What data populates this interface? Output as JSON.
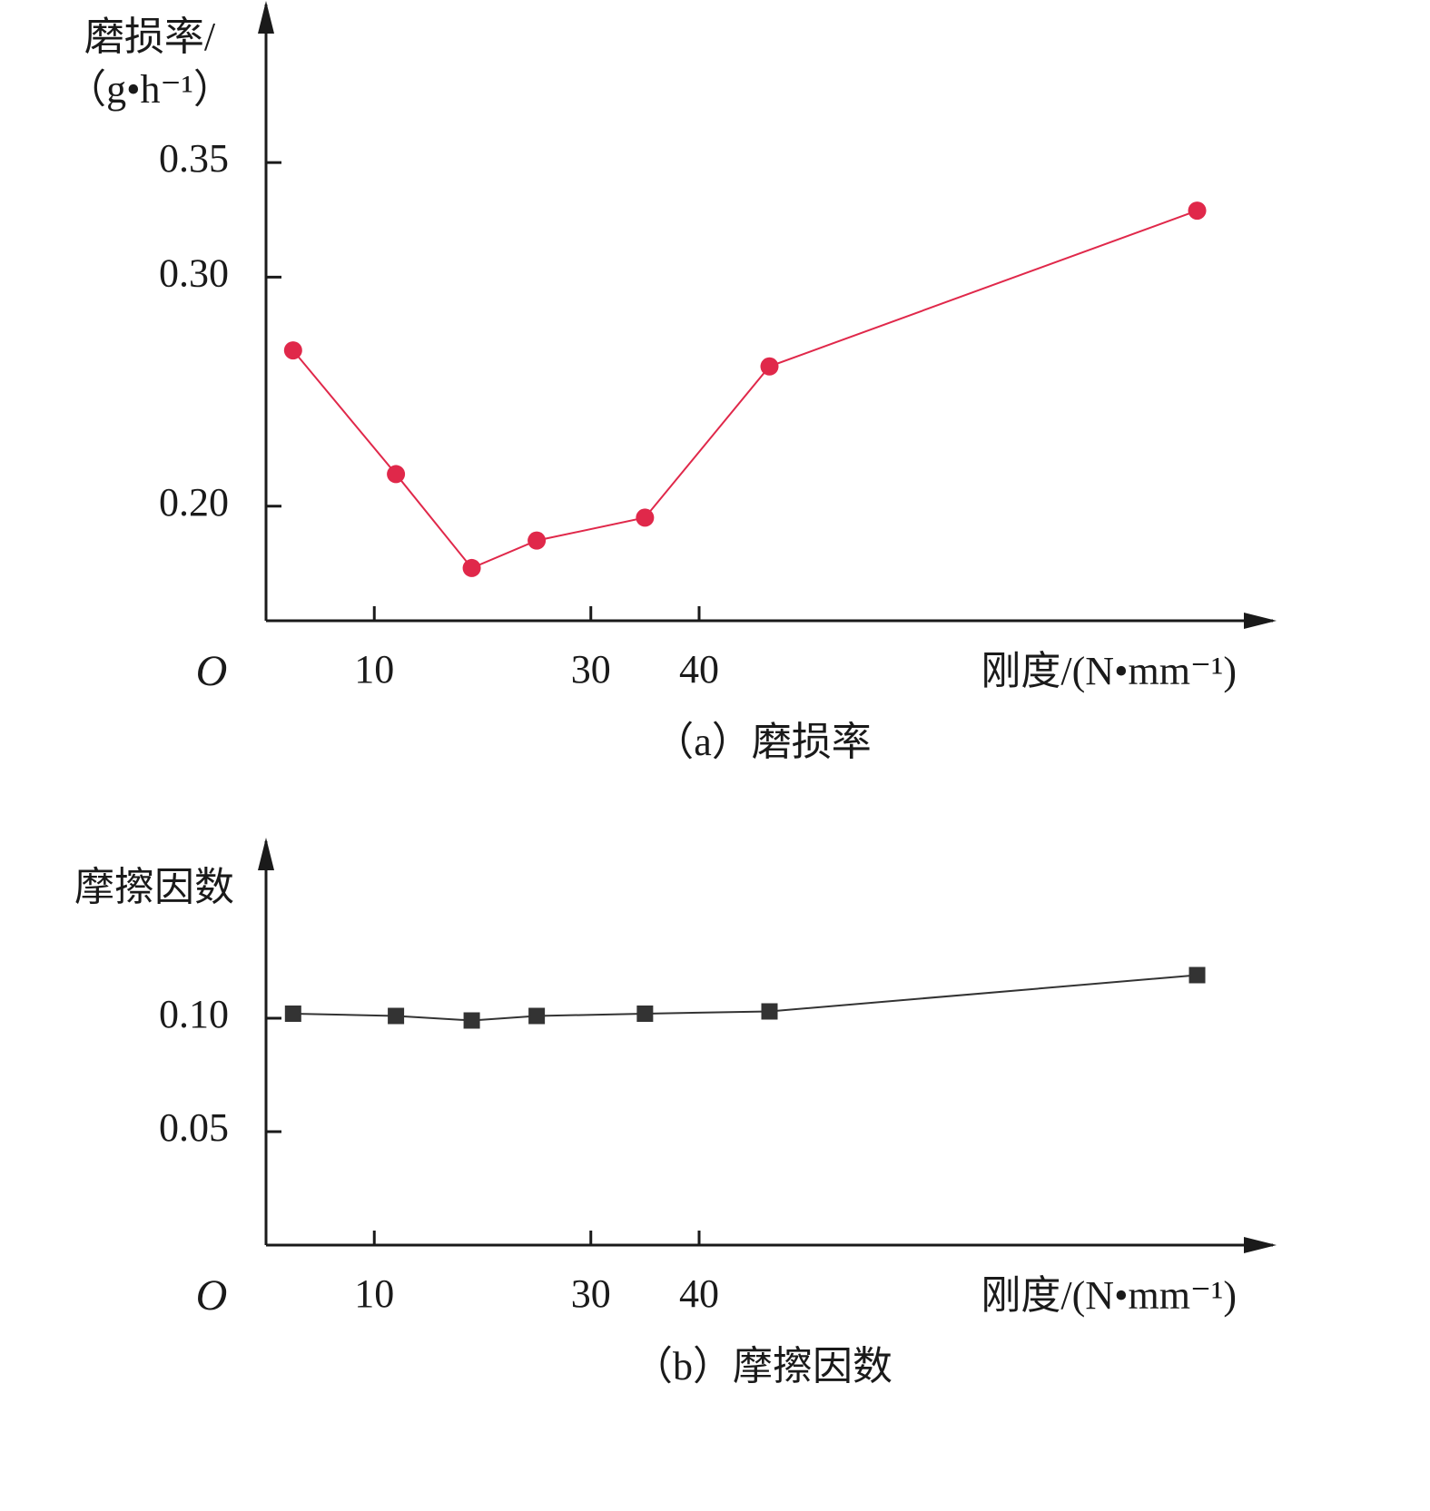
{
  "chart_data": [
    {
      "type": "line",
      "caption": "（a）磨损率",
      "ylabel": [
        "磨损率/",
        "（g•h⁻¹）"
      ],
      "xlabel": "刚度/(N•mm⁻¹)",
      "origin_label": "O",
      "x": [
        2.5,
        12,
        19,
        25,
        35,
        46.5,
        86
      ],
      "series": [
        {
          "color": "#e0284a",
          "marker": "circle",
          "values": [
            0.268,
            0.214,
            0.173,
            0.185,
            0.195,
            0.261,
            0.329
          ]
        }
      ],
      "xlim": [
        0,
        93
      ],
      "xticks": [
        10,
        30,
        40
      ],
      "ylim": [
        0.15,
        0.415
      ],
      "yticks": [
        {
          "value": 0.2,
          "label": "0.20"
        },
        {
          "value": 0.3,
          "label": "0.30"
        },
        0.35
      ]
    },
    {
      "type": "line",
      "caption": "（b）摩擦因数",
      "ylabel": [
        "摩擦因数"
      ],
      "xlabel": "刚度/(N•mm⁻¹)",
      "origin_label": "O",
      "x": [
        2.5,
        12,
        19,
        25,
        35,
        46.5,
        86
      ],
      "series": [
        {
          "color": "#333333",
          "marker": "square",
          "values": [
            0.102,
            0.101,
            0.099,
            0.101,
            0.102,
            0.103,
            0.119
          ]
        }
      ],
      "xlim": [
        0,
        93
      ],
      "xticks": [
        10,
        30,
        40
      ],
      "ylim": [
        0,
        0.174
      ],
      "yticks": [
        0.05,
        {
          "value": 0.1,
          "label": "0.10"
        }
      ]
    }
  ]
}
